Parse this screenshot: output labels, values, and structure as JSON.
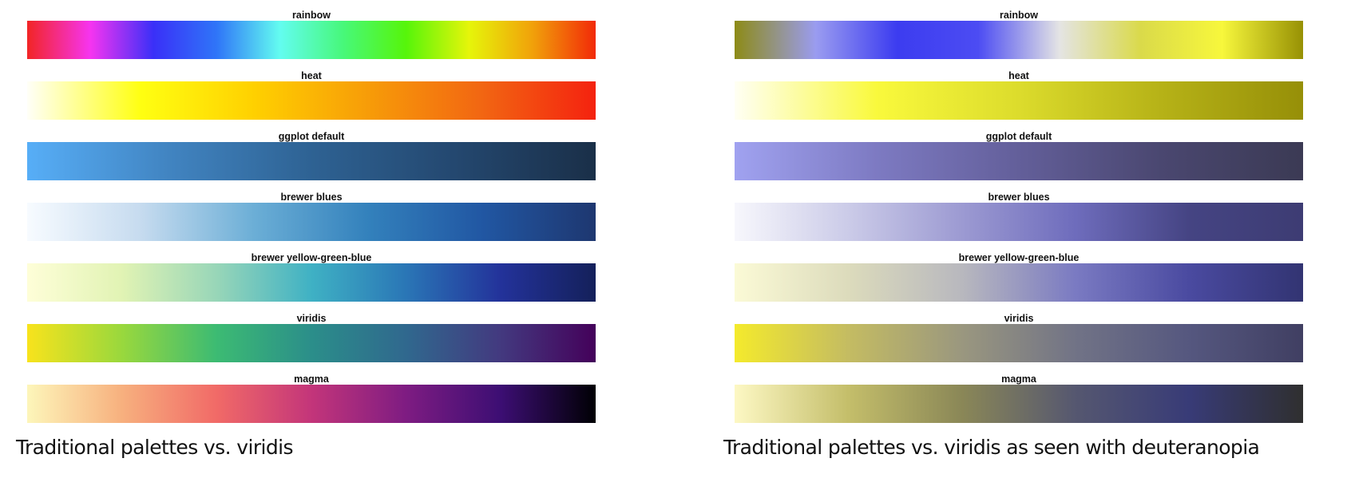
{
  "chart_data": [
    {
      "type": "heatmap",
      "caption": "Traditional palettes vs. viridis",
      "palettes": [
        {
          "name": "rainbow",
          "colors": [
            "#f22525",
            "#f634f0",
            "#3a30f8",
            "#2f75f8",
            "#63fcf0",
            "#47f87a",
            "#56f50a",
            "#e6f50a",
            "#f1a10a",
            "#f22a08"
          ]
        },
        {
          "name": "heat",
          "colors": [
            "#fffff8",
            "#ffff11",
            "#ffd000",
            "#f79c08",
            "#f26612",
            "#f4220f"
          ]
        },
        {
          "name": "ggplot default",
          "colors": [
            "#57aef7",
            "#4184c1",
            "#2e6293",
            "#244870",
            "#1a2f48"
          ]
        },
        {
          "name": "brewer blues",
          "colors": [
            "#f7fbff",
            "#c6dbef",
            "#6baed6",
            "#3381bc",
            "#2157a3",
            "#1e3770"
          ]
        },
        {
          "name": "brewer yellow-green-blue",
          "colors": [
            "#fefed8",
            "#e1f3b4",
            "#98d6b8",
            "#3fb1c4",
            "#2a76b6",
            "#23329a",
            "#14205a"
          ]
        },
        {
          "name": "viridis",
          "colors": [
            "#f8e31c",
            "#99d83d",
            "#3cbb73",
            "#2b8e8a",
            "#30688e",
            "#43397f",
            "#44015a"
          ]
        },
        {
          "name": "magma",
          "colors": [
            "#fdf6ba",
            "#f7b07e",
            "#f16a67",
            "#c3357a",
            "#7e1c82",
            "#3c0e73",
            "#000004"
          ]
        }
      ]
    },
    {
      "type": "heatmap",
      "caption": "Traditional palettes vs. viridis as seen with deuteranopia",
      "palettes": [
        {
          "name": "rainbow",
          "colors": [
            "#8d8b16",
            "#9a9cf0",
            "#3c3cf0",
            "#4c4cf3",
            "#e4e4e4",
            "#dada4a",
            "#f7f73c",
            "#979104"
          ]
        },
        {
          "name": "heat",
          "colors": [
            "#fffff4",
            "#f9f93c",
            "#dcdc2c",
            "#b6b217",
            "#968f08"
          ]
        },
        {
          "name": "ggplot default",
          "colors": [
            "#a0a2f0",
            "#7d7ac2",
            "#635f9a",
            "#4a4770",
            "#3b3a54"
          ]
        },
        {
          "name": "brewer blues",
          "colors": [
            "#f7f7fc",
            "#cbcbe8",
            "#9c9ad2",
            "#6e6cbc",
            "#454483",
            "#3d3c73"
          ]
        },
        {
          "name": "brewer yellow-green-blue",
          "colors": [
            "#fbfad6",
            "#dcdbbc",
            "#b8b8be",
            "#7a7ac2",
            "#4a4aa0",
            "#323472"
          ]
        },
        {
          "name": "viridis",
          "colors": [
            "#f4ea2c",
            "#c4bc62",
            "#9a977f",
            "#717386",
            "#55577f",
            "#403f62"
          ]
        },
        {
          "name": "magma",
          "colors": [
            "#fdf8c4",
            "#c4be6a",
            "#8a8757",
            "#555770",
            "#383b77",
            "#2f2f2f"
          ]
        }
      ]
    }
  ]
}
